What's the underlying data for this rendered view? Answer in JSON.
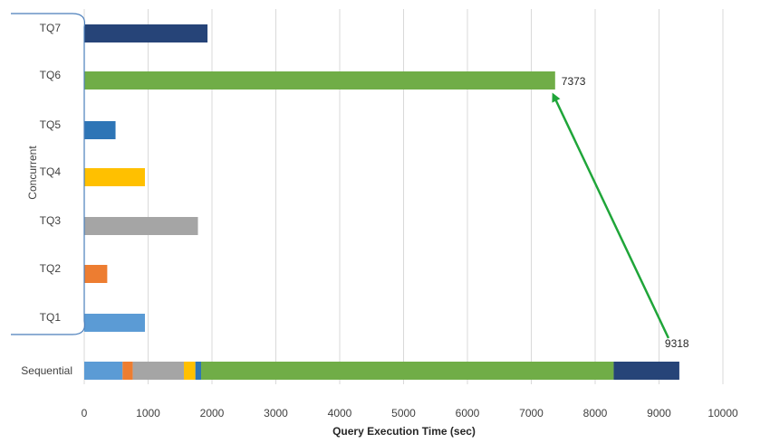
{
  "chart_data": {
    "type": "bar",
    "orientation": "horizontal",
    "title": "",
    "xlabel": "Query Execution Time (sec)",
    "ylabel": "",
    "xlim": [
      0,
      10000
    ],
    "xticks": [
      0,
      1000,
      2000,
      3000,
      4000,
      5000,
      6000,
      7000,
      8000,
      9000,
      10000
    ],
    "grid": "vertical",
    "categories": [
      "TQ7",
      "TQ6",
      "TQ5",
      "TQ4",
      "TQ3",
      "TQ2",
      "TQ1"
    ],
    "values": [
      1930,
      7373,
      490,
      950,
      1780,
      360,
      950
    ],
    "colors": {
      "TQ1": "#5b9bd5",
      "TQ2": "#ed7d31",
      "TQ3": "#a5a5a5",
      "TQ4": "#ffc000",
      "TQ5": "#2e75b6",
      "TQ6": "#70ad47",
      "TQ7": "#264478"
    },
    "group_label": "Concurrent",
    "stacked_bar": {
      "label": "Sequential",
      "segments": [
        {
          "name": "TQ1",
          "value": 600
        },
        {
          "name": "TQ2",
          "value": 160
        },
        {
          "name": "TQ3",
          "value": 800
        },
        {
          "name": "TQ4",
          "value": 180
        },
        {
          "name": "TQ5",
          "value": 90
        },
        {
          "name": "TQ6",
          "value": 6460
        },
        {
          "name": "TQ7",
          "value": 1028
        }
      ],
      "total": 9318
    },
    "annotations": [
      {
        "text": "7373",
        "value": 7373,
        "target": "TQ6"
      },
      {
        "text": "9318",
        "value": 9318,
        "target": "Sequential"
      }
    ],
    "arrow": {
      "from": "Sequential",
      "to": "TQ6",
      "color": "#1fa539"
    },
    "axis_color": "#d9d9d9",
    "bracket_color": "#4a7ebb"
  }
}
